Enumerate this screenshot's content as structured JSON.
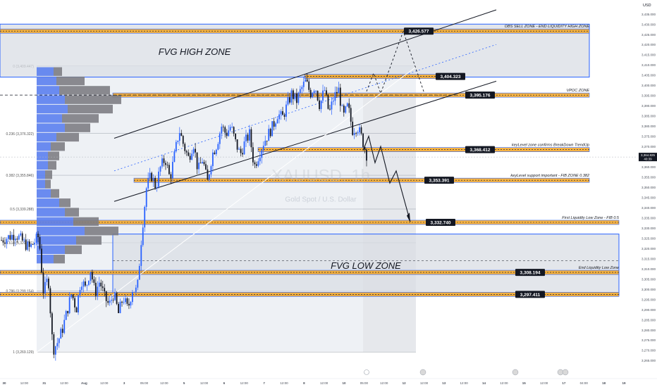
{
  "chart_data": {
    "type": "candlestick",
    "symbol": "XAUUSD, 1h",
    "description": "Gold Spot / U.S. Dollar",
    "currency": "USD",
    "y_range": [
      3263,
      3437
    ],
    "y_ticks": [
      "3,435.000",
      "3,430.000",
      "3,425.000",
      "3,420.000",
      "3,415.000",
      "3,410.000",
      "3,405.000",
      "3,400.000",
      "3,395.000",
      "3,390.000",
      "3,385.000",
      "3,380.000",
      "3,375.000",
      "3,370.000",
      "3,365.000",
      "3,360.000",
      "3,355.000",
      "3,350.000",
      "3,345.000",
      "3,340.000",
      "3,335.000",
      "3,330.000",
      "3,325.000",
      "3,320.000",
      "3,315.000",
      "3,310.000",
      "3,305.000",
      "3,300.000",
      "3,295.000",
      "3,290.000",
      "3,285.000",
      "3,280.000",
      "3,275.000",
      "3,270.000",
      "3,265.000"
    ],
    "x_ticks": [
      "30",
      "12:00",
      "31",
      "12:00",
      "Aug",
      "12:00",
      "3",
      "05:00",
      "12:00",
      "5",
      "12:00",
      "6",
      "12:00",
      "7",
      "12:00",
      "8",
      "12:00",
      "10",
      "05:00",
      "12:00",
      "12",
      "12:00",
      "13",
      "12:00",
      "14",
      "12:00",
      "15",
      "12:00",
      "17",
      "04:00",
      "18",
      "19"
    ],
    "current_price": {
      "value": "3,364.825",
      "countdown": "40:39"
    },
    "ohlc_path": [
      [
        0,
        3324
      ],
      [
        3,
        3327
      ],
      [
        6,
        3320
      ],
      [
        8,
        3326
      ],
      [
        9,
        3298
      ],
      [
        10,
        3306
      ],
      [
        11,
        3270
      ],
      [
        12,
        3274
      ],
      [
        13,
        3280
      ],
      [
        15,
        3298
      ],
      [
        16,
        3290
      ],
      [
        17,
        3305
      ],
      [
        18,
        3300
      ],
      [
        19,
        3310
      ],
      [
        20,
        3298
      ],
      [
        21,
        3304
      ],
      [
        22,
        3296
      ],
      [
        23,
        3292
      ],
      [
        24,
        3298
      ],
      [
        25,
        3288
      ],
      [
        26,
        3296
      ],
      [
        27,
        3290
      ],
      [
        28,
        3300
      ],
      [
        29,
        3299
      ],
      [
        30,
        3328
      ],
      [
        31,
        3350
      ],
      [
        32,
        3356
      ],
      [
        33,
        3350
      ],
      [
        34,
        3360
      ],
      [
        35,
        3364
      ],
      [
        36,
        3354
      ],
      [
        37,
        3366
      ],
      [
        38,
        3378
      ],
      [
        39,
        3370
      ],
      [
        40,
        3364
      ],
      [
        41,
        3372
      ],
      [
        42,
        3358
      ],
      [
        43,
        3364
      ],
      [
        44,
        3352
      ],
      [
        45,
        3366
      ],
      [
        46,
        3371
      ],
      [
        47,
        3380
      ],
      [
        48,
        3376
      ],
      [
        49,
        3380
      ],
      [
        50,
        3372
      ],
      [
        51,
        3366
      ],
      [
        52,
        3372
      ],
      [
        53,
        3376
      ],
      [
        54,
        3360
      ],
      [
        55,
        3366
      ],
      [
        56,
        3372
      ],
      [
        57,
        3376
      ],
      [
        58,
        3380
      ],
      [
        59,
        3386
      ],
      [
        60,
        3384
      ],
      [
        61,
        3390
      ],
      [
        62,
        3396
      ],
      [
        63,
        3392
      ],
      [
        64,
        3398
      ],
      [
        65,
        3402
      ],
      [
        66,
        3396
      ],
      [
        67,
        3400
      ],
      [
        68,
        3390
      ],
      [
        69,
        3398
      ],
      [
        70,
        3386
      ],
      [
        71,
        3394
      ],
      [
        72,
        3398
      ],
      [
        73,
        3384
      ],
      [
        74,
        3390
      ],
      [
        75,
        3378
      ],
      [
        76,
        3380
      ],
      [
        77,
        3374
      ],
      [
        78,
        3366
      ]
    ],
    "volume_profile": {
      "price_step": 4.6,
      "start_price": 3408.5,
      "bars": [
        {
          "up": 12,
          "down": 6
        },
        {
          "up": 14,
          "down": 20
        },
        {
          "up": 16,
          "down": 36
        },
        {
          "up": 20,
          "down": 40
        },
        {
          "up": 22,
          "down": 32
        },
        {
          "up": 18,
          "down": 26
        },
        {
          "up": 20,
          "down": 18
        },
        {
          "up": 14,
          "down": 16
        },
        {
          "up": 10,
          "down": 10
        },
        {
          "up": 8,
          "down": 8
        },
        {
          "up": 8,
          "down": 6
        },
        {
          "up": 6,
          "down": 5
        },
        {
          "up": 6,
          "down": 4
        },
        {
          "up": 10,
          "down": 6
        },
        {
          "up": 16,
          "down": 8
        },
        {
          "up": 20,
          "down": 10
        },
        {
          "up": 26,
          "down": 18
        },
        {
          "up": 34,
          "down": 24
        },
        {
          "up": 28,
          "down": 18
        },
        {
          "up": 20,
          "down": 12
        },
        {
          "up": 12,
          "down": 8
        }
      ]
    },
    "fib_levels": [
      {
        "label": "0 (3,409.447)",
        "price": 3409.447
      },
      {
        "label": "0.236 (3,376.322)",
        "price": 3376.322
      },
      {
        "label": "0.382 (3,355.846)",
        "price": 3355.846
      },
      {
        "label": "0.5 (3,339.288)",
        "price": 3339.288
      },
      {
        "label": "0.618 (3,322.731)",
        "price": 3322.731
      },
      {
        "label": "0.786 (3,299.154)",
        "price": 3299.154
      },
      {
        "label": "1 (3,269.129)",
        "price": 3269.129
      }
    ],
    "zones": [
      {
        "name": "FVG HIGH ZONE",
        "price_top": 3430,
        "price_bottom": 3404
      },
      {
        "name": "FVG LOW ZONE",
        "price_top": 3327,
        "price_bottom": 3297
      }
    ],
    "key_levels": [
      {
        "label": "OBS SELL ZONE - END LIQUIDITY HIGH ZONE",
        "price": 3426.577,
        "value_label": "3,426.577"
      },
      {
        "label": "",
        "price": 3404.323,
        "value_label": "3,404.323"
      },
      {
        "label": "VPOC ZONE",
        "price": 3395.176,
        "value_label": "3,395.176"
      },
      {
        "label": "keyLevel zone confirms BreakDown TrendUp",
        "price": 3368.412,
        "value_label": "3,368.412"
      },
      {
        "label": "keyLevel support important - FIB ZONE 0.382",
        "price": 3353.391,
        "value_label": "3,353.391"
      },
      {
        "label": "First Liquidity Low Zone - FIB 0.5",
        "price": 3332.74,
        "value_label": "3,332.740"
      },
      {
        "label": "End Liquidity Low Zone",
        "price": 3308.194,
        "value_label": "3,308.194"
      },
      {
        "label": "",
        "price": 3297.411,
        "value_label": "3,297.411"
      }
    ],
    "colors": {
      "up": "#2962ff",
      "down": "#131722",
      "zone_orange": "#f5a623",
      "zone_border": "#2962ff",
      "band_fill": "#d9dde4"
    }
  }
}
